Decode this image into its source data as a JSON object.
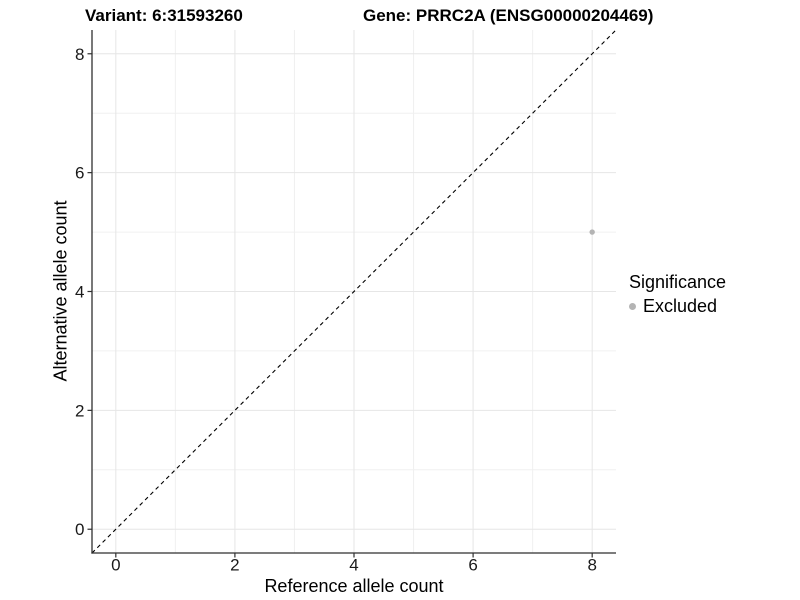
{
  "titles": {
    "variant": "Variant: 6:31593260",
    "gene": "Gene: PRRC2A (ENSG00000204469)"
  },
  "legend": {
    "title": "Significance",
    "items": [
      {
        "label": "Excluded",
        "color": "#b4b4b4"
      }
    ]
  },
  "chart_data": {
    "type": "scatter",
    "title": "Variant: 6:31593260   Gene: PRRC2A (ENSG00000204469)",
    "xlabel": "Reference allele count",
    "ylabel": "Alternative allele count",
    "xlim": [
      -0.4,
      8.4
    ],
    "ylim": [
      -0.4,
      8.4
    ],
    "x_ticks": [
      0,
      2,
      4,
      6,
      8
    ],
    "y_ticks": [
      0,
      2,
      4,
      6,
      8
    ],
    "minor_ticks": [
      1,
      3,
      5,
      7
    ],
    "grid": true,
    "legend_position": "right",
    "series": [
      {
        "name": "Excluded",
        "color": "#b4b4b4",
        "points": [
          {
            "x": 8,
            "y": 5
          }
        ]
      }
    ],
    "reference_line": {
      "slope": 1,
      "intercept": 0,
      "style": "dashed",
      "color": "#000000"
    },
    "colors": {
      "grid_major": "#e6e6e6",
      "grid_minor": "#f0f0f0",
      "axis": "#2f2f2f",
      "tick": "#2f2f2f"
    }
  }
}
